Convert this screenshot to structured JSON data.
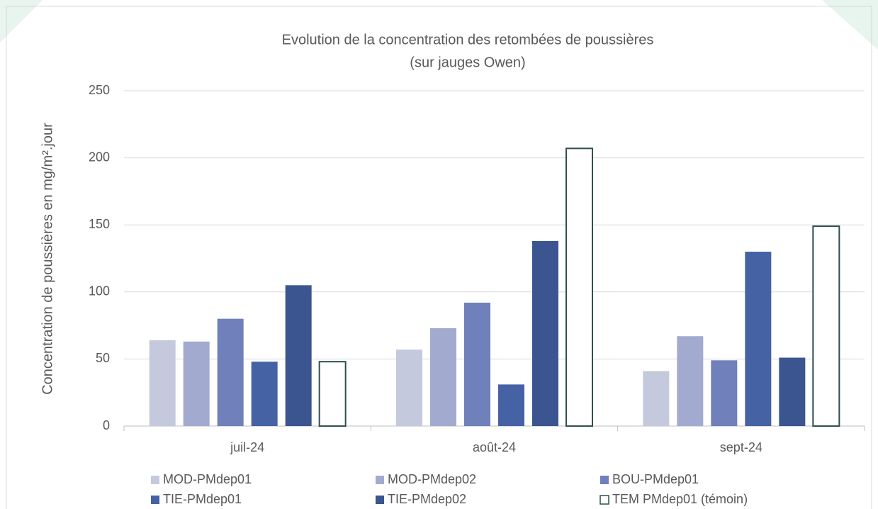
{
  "chart_data": {
    "type": "bar",
    "title": "Evolution de la concentration des retombées de poussières",
    "subtitle": "(sur jauges Owen)",
    "y_label": "Concentration de poussières en mg/m².jour",
    "categories": [
      "juil-24",
      "août-24",
      "sept-24"
    ],
    "series": [
      {
        "name": "MOD-PMdep01",
        "color": "#c5c9de",
        "values": [
          64,
          57,
          41
        ]
      },
      {
        "name": "MOD-PMdep02",
        "color": "#a2aacf",
        "values": [
          63,
          73,
          67
        ]
      },
      {
        "name": "BOU-PMdep01",
        "color": "#6f80ba",
        "values": [
          80,
          92,
          49
        ]
      },
      {
        "name": "TIE-PMdep01",
        "color": "#4562a5",
        "values": [
          48,
          31,
          130
        ]
      },
      {
        "name": "TIE-PMdep02",
        "color": "#3b5590",
        "values": [
          105,
          138,
          51
        ]
      },
      {
        "name": "TEM  PMdep01 (témoin)",
        "color": "#ffffff",
        "stroke": "#2f4f4f",
        "values": [
          48,
          207,
          149
        ]
      }
    ],
    "ylim": [
      0,
      250
    ],
    "yticks": [
      0,
      50,
      100,
      150,
      200,
      250
    ],
    "grid": true,
    "legend": "bottom"
  }
}
